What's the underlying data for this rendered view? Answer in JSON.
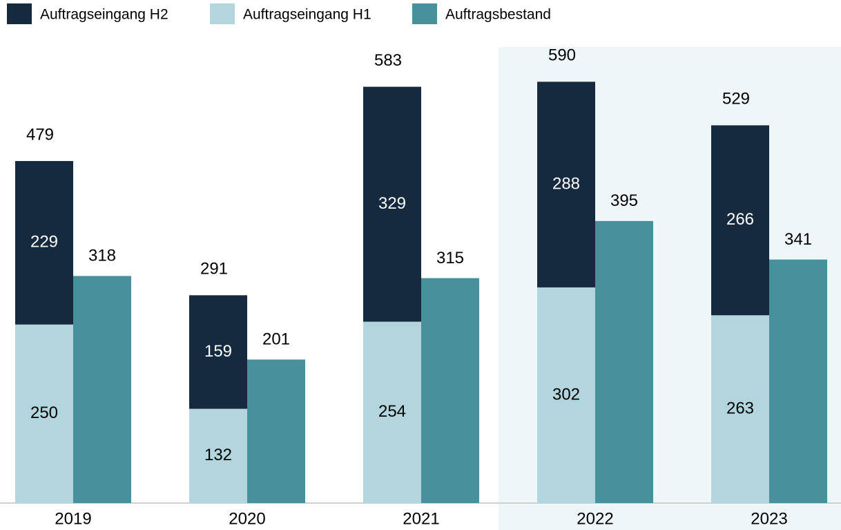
{
  "chart_data": {
    "type": "bar",
    "categories": [
      "2019",
      "2020",
      "2021",
      "2022",
      "2023"
    ],
    "series": [
      {
        "name": "Auftragseingang H2",
        "color": "#152a3f",
        "stacked": true,
        "label_color": "#ffffff",
        "values": [
          229,
          159,
          329,
          288,
          266
        ]
      },
      {
        "name": "Auftragseingang H1",
        "color": "#b2d5de",
        "stacked": true,
        "label_color": "#000000",
        "values": [
          250,
          132,
          254,
          302,
          263
        ]
      },
      {
        "name": "Auftragsbestand",
        "color": "#48909c",
        "stacked": false,
        "label_color": "#000000",
        "values": [
          318,
          201,
          315,
          395,
          341
        ]
      }
    ],
    "totals": [
      479,
      291,
      583,
      590,
      529
    ],
    "ylim": [
      0,
      600
    ],
    "highlight": {
      "start_index": 3,
      "color": "#eef6f8"
    },
    "legend": "top-left"
  }
}
